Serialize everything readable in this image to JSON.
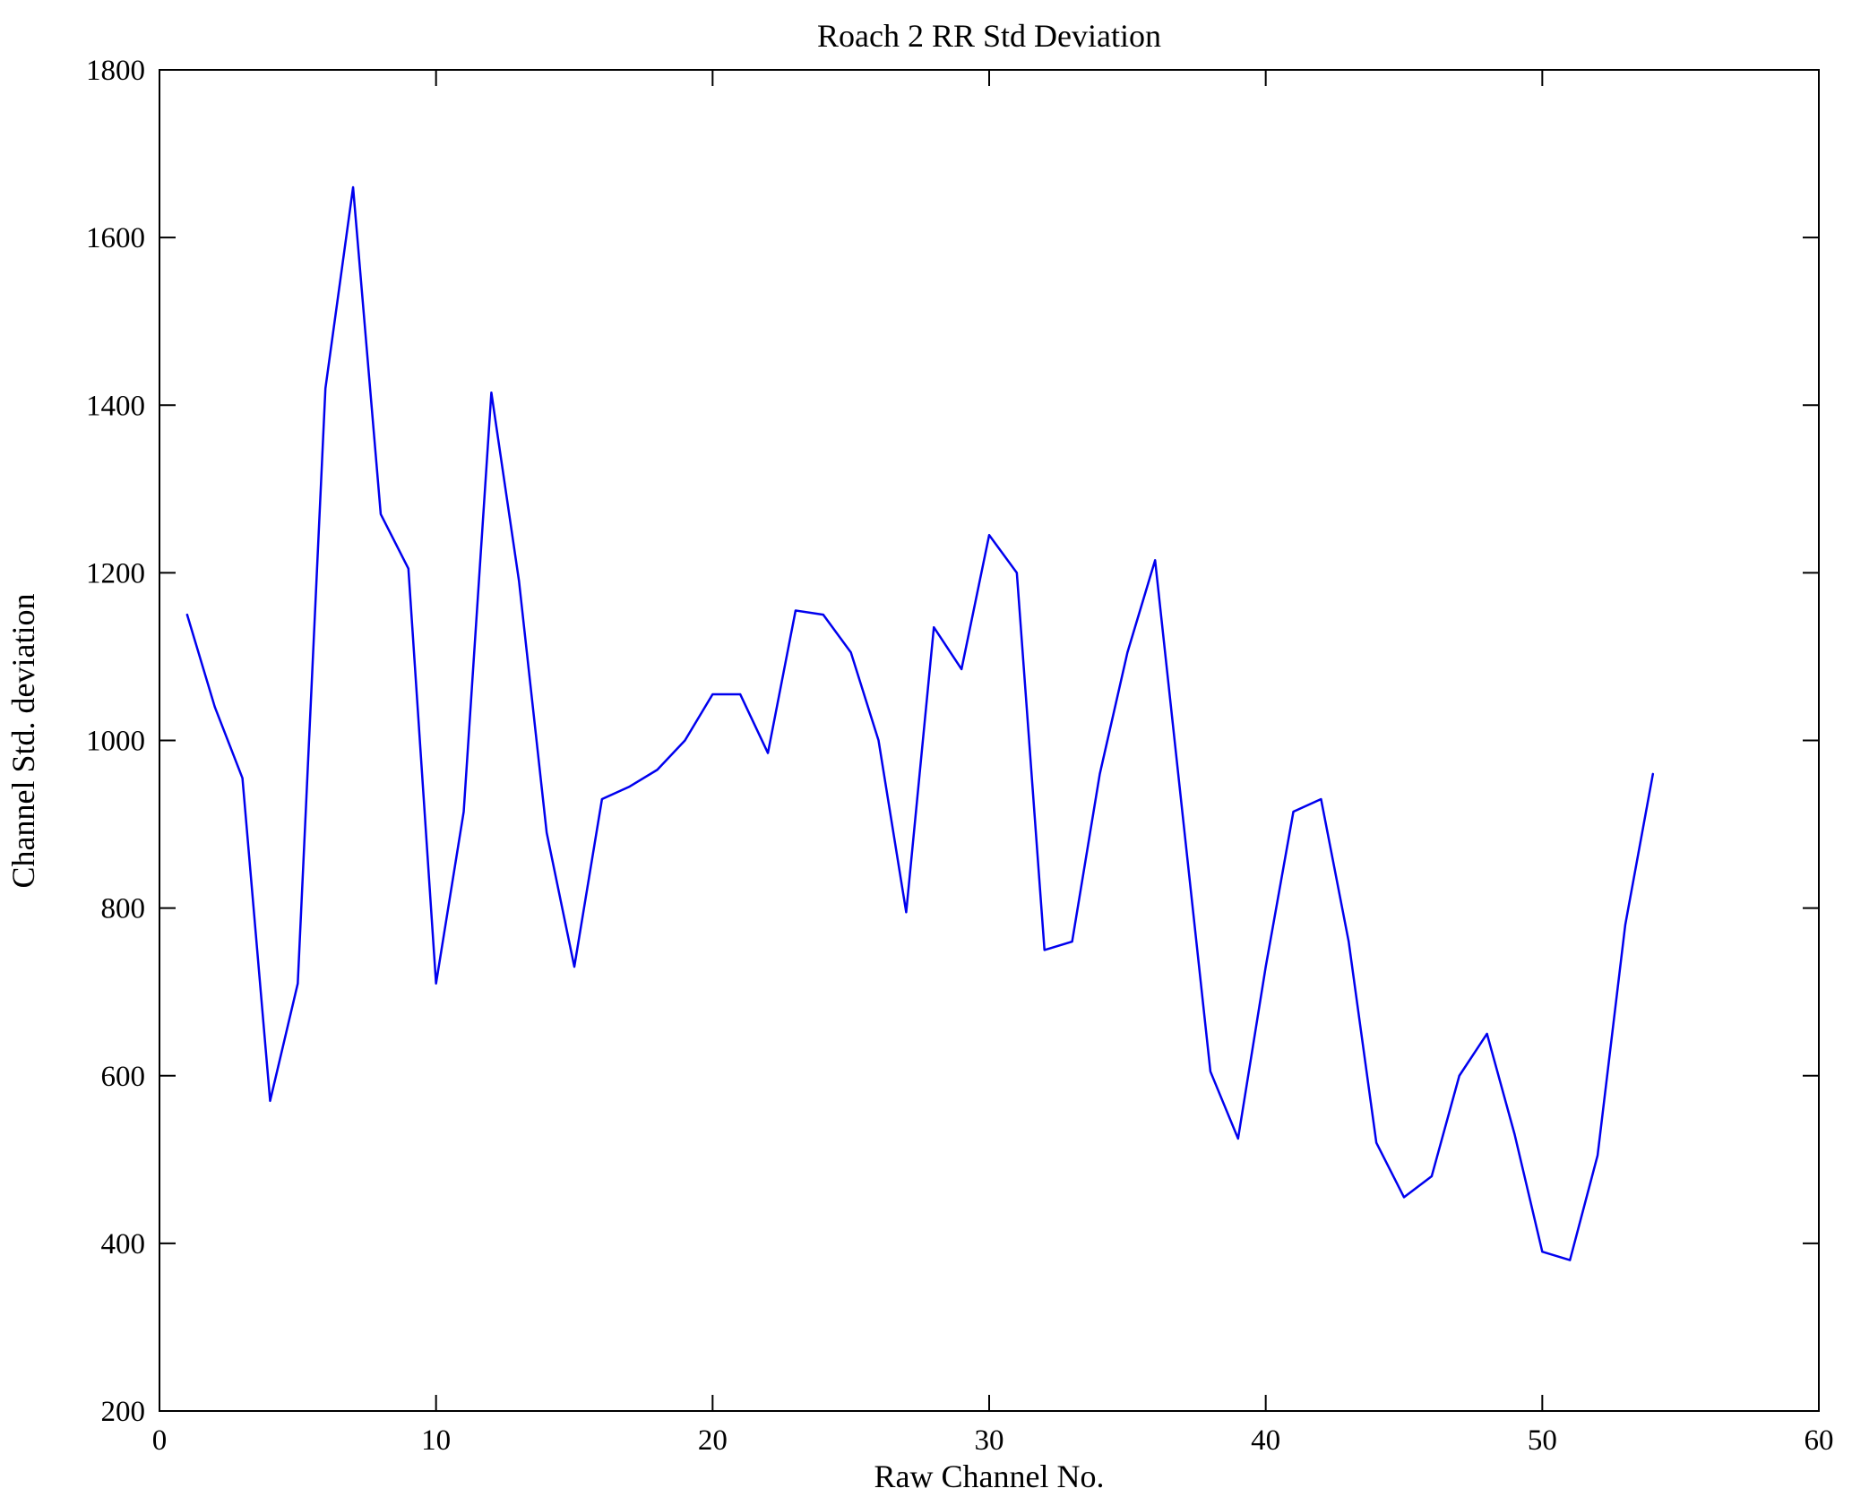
{
  "figure": {
    "background": "#ffffff",
    "axis_color": "#000000",
    "line_color": "#0000ee"
  },
  "chart_data": {
    "type": "line",
    "title": "Roach 2 RR Std Deviation",
    "xlabel": "Raw Channel No.",
    "ylabel": "Channel Std. deviation",
    "xlim": [
      0,
      60
    ],
    "ylim": [
      200,
      1800
    ],
    "xticks": [
      0,
      10,
      20,
      30,
      40,
      50,
      60
    ],
    "yticks": [
      200,
      400,
      600,
      800,
      1000,
      1200,
      1400,
      1600,
      1800
    ],
    "grid": false,
    "legend": null,
    "series_name": "Channel Std. deviation",
    "x": [
      1,
      2,
      3,
      4,
      5,
      6,
      7,
      8,
      9,
      10,
      11,
      12,
      13,
      14,
      15,
      16,
      17,
      18,
      19,
      20,
      21,
      22,
      23,
      24,
      25,
      26,
      27,
      28,
      29,
      30,
      31,
      32,
      33,
      34,
      35,
      36,
      37,
      38,
      39,
      40,
      41,
      42,
      43,
      44,
      45,
      46,
      47,
      48,
      49,
      50,
      51,
      52,
      53,
      54
    ],
    "values": [
      1150,
      1040,
      955,
      570,
      710,
      1420,
      1660,
      1270,
      1205,
      710,
      915,
      1415,
      1190,
      890,
      730,
      930,
      945,
      965,
      1000,
      1055,
      1055,
      985,
      1155,
      1150,
      1105,
      1000,
      795,
      1135,
      1085,
      1245,
      1200,
      750,
      760,
      960,
      1105,
      1215,
      910,
      605,
      525,
      730,
      915,
      930,
      760,
      520,
      455,
      480,
      600,
      650,
      530,
      390,
      380,
      505,
      780,
      960
    ]
  }
}
